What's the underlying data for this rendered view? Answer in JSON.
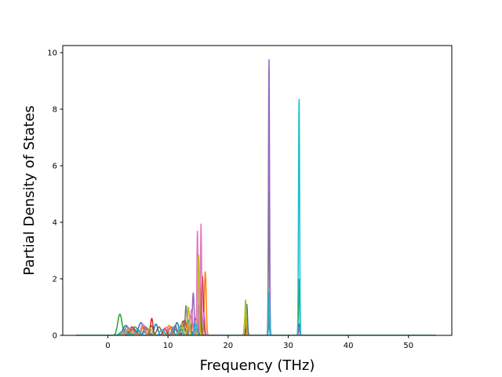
{
  "chart_data": {
    "type": "line",
    "title": "",
    "xlabel": "Frequency (THz)",
    "ylabel": "Partial Density of States",
    "xlim": [
      -7.5,
      57.2
    ],
    "ylim": [
      0,
      10.25
    ],
    "xticks": [
      0,
      10,
      20,
      30,
      40,
      50
    ],
    "yticks": [
      0,
      2,
      4,
      6,
      8,
      10
    ],
    "grid": false,
    "legend": "none",
    "baseline_range": [
      -5.3,
      54.5
    ],
    "series": [
      {
        "color": "#2ca02c",
        "peaks": [
          [
            2.0,
            0.75,
            0.35
          ],
          [
            4.5,
            0.3,
            0.5
          ],
          [
            7.2,
            0.35,
            0.3
          ],
          [
            10.5,
            0.3,
            0.35
          ],
          [
            13.5,
            0.55,
            0.25
          ],
          [
            15.3,
            1.1,
            0.22
          ],
          [
            26.8,
            5.05,
            0.09
          ],
          [
            31.8,
            2.0,
            0.09
          ]
        ]
      },
      {
        "color": "#1f77b4",
        "peaks": [
          [
            3.0,
            0.35,
            0.5
          ],
          [
            5.5,
            0.45,
            0.4
          ],
          [
            8.0,
            0.4,
            0.3
          ],
          [
            11.5,
            0.45,
            0.3
          ],
          [
            14.6,
            0.6,
            0.25
          ],
          [
            23.1,
            1.1,
            0.12
          ],
          [
            26.8,
            0.5,
            0.09
          ],
          [
            31.8,
            0.4,
            0.09
          ]
        ]
      },
      {
        "color": "#ff7f0e",
        "peaks": [
          [
            3.5,
            0.25,
            0.5
          ],
          [
            6.0,
            0.35,
            0.35
          ],
          [
            10.2,
            0.35,
            0.3
          ],
          [
            13.8,
            0.7,
            0.25
          ],
          [
            16.2,
            2.25,
            0.15
          ],
          [
            22.8,
            0.6,
            0.12
          ]
        ]
      },
      {
        "color": "#d62728",
        "peaks": [
          [
            4.0,
            0.3,
            0.4
          ],
          [
            7.3,
            0.6,
            0.2
          ],
          [
            9.5,
            0.25,
            0.3
          ],
          [
            12.8,
            0.55,
            0.25
          ],
          [
            15.7,
            2.1,
            0.18
          ],
          [
            26.8,
            1.2,
            0.09
          ]
        ]
      },
      {
        "color": "#9467bd",
        "peaks": [
          [
            3.2,
            0.3,
            0.45
          ],
          [
            6.5,
            0.25,
            0.4
          ],
          [
            11.0,
            0.3,
            0.35
          ],
          [
            14.2,
            1.5,
            0.15
          ],
          [
            26.8,
            9.75,
            0.09
          ],
          [
            31.8,
            0.3,
            0.09
          ]
        ]
      },
      {
        "color": "#8c564b",
        "peaks": [
          [
            4.2,
            0.25,
            0.5
          ],
          [
            8.5,
            0.3,
            0.35
          ],
          [
            12.5,
            0.5,
            0.3
          ],
          [
            15.2,
            1.0,
            0.2
          ],
          [
            23.1,
            0.4,
            0.12
          ]
        ]
      },
      {
        "color": "#e377c2",
        "peaks": [
          [
            3.8,
            0.25,
            0.5
          ],
          [
            5.8,
            0.4,
            0.3
          ],
          [
            9.8,
            0.3,
            0.3
          ],
          [
            13.9,
            0.9,
            0.2
          ],
          [
            14.9,
            3.7,
            0.1
          ],
          [
            15.5,
            3.95,
            0.1
          ],
          [
            16.0,
            0.8,
            0.15
          ]
        ]
      },
      {
        "color": "#7f7f7f",
        "peaks": [
          [
            2.8,
            0.2,
            0.5
          ],
          [
            6.3,
            0.3,
            0.35
          ],
          [
            11.2,
            0.35,
            0.3
          ],
          [
            13.0,
            1.05,
            0.15
          ],
          [
            26.8,
            0.8,
            0.09
          ]
        ]
      },
      {
        "color": "#bcbd22",
        "peaks": [
          [
            3.3,
            0.2,
            0.5
          ],
          [
            7.0,
            0.25,
            0.3
          ],
          [
            12.2,
            0.4,
            0.3
          ],
          [
            13.4,
            1.0,
            0.15
          ],
          [
            15.1,
            2.85,
            0.12
          ],
          [
            22.9,
            1.25,
            0.12
          ]
        ]
      },
      {
        "color": "#17becf",
        "peaks": [
          [
            2.5,
            0.15,
            0.5
          ],
          [
            5.0,
            0.2,
            0.4
          ],
          [
            9.0,
            0.2,
            0.35
          ],
          [
            12.0,
            0.3,
            0.3
          ],
          [
            14.6,
            0.4,
            0.2
          ],
          [
            26.8,
            1.5,
            0.09
          ],
          [
            31.8,
            8.4,
            0.09
          ]
        ]
      }
    ]
  }
}
